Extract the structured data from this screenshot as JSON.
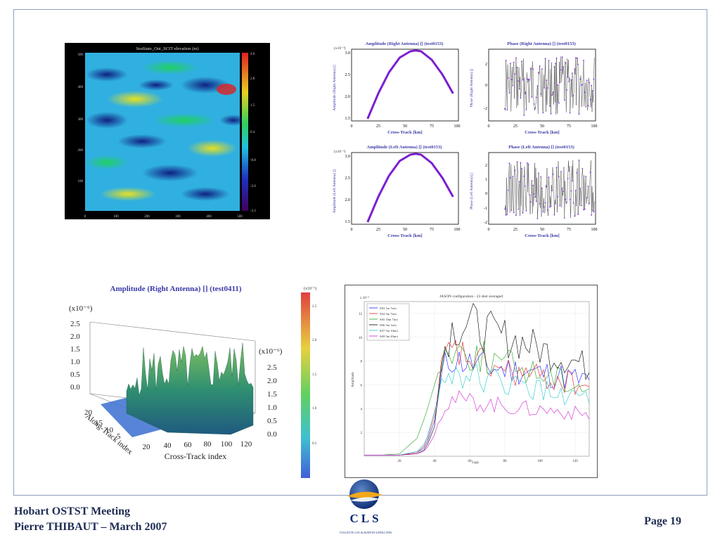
{
  "footer": {
    "line1": "Hobart OSTST Meeting",
    "line2": "Pierre THIBAUT – March 2007",
    "page": "Page 19"
  },
  "logo": {
    "name": "CLS",
    "tagline": "COLLECTE LOCALISATION SATELLITES"
  },
  "heatmap": {
    "title": "SeaState_Out_SCIT elevation (m)",
    "x_ticks": [
      "0",
      "100",
      "200",
      "300",
      "400",
      "500"
    ],
    "y_ticks": [
      "500",
      "400",
      "300",
      "200",
      "100"
    ],
    "colorbar_ticks": [
      "4.0",
      "2.8",
      "1.5",
      "0.4",
      "-0.8",
      "-2.0",
      "-2.2"
    ]
  },
  "amp_right": {
    "title": "Amplitude (Right Antenna) [] (test0153)",
    "ylabel": "Amplitude (Right Antenna) []",
    "xlabel": "Cross-Track [km]",
    "scale": "(x10⁻³)",
    "yticks": [
      "3.0",
      "2.5",
      "2.0",
      "1.5"
    ],
    "xticks": [
      "0",
      "25",
      "50",
      "75",
      "100"
    ]
  },
  "amp_left": {
    "title": "Amplitude (Left Antenna) [] (test0153)",
    "ylabel": "Amplitude (Left Antenna) []",
    "xlabel": "Cross-Track [km]",
    "scale": "(x10⁻³)",
    "yticks": [
      "3.0",
      "2.5",
      "2.0",
      "1.5"
    ],
    "xticks": [
      "0",
      "25",
      "50",
      "75",
      "100"
    ]
  },
  "phase_right": {
    "title": "Phase (Right Antenna) [] (test0153)",
    "ylabel": "Phase (Right Antenna) []",
    "xlabel": "Cross-Track [km]",
    "yticks": [
      "2",
      "0",
      "-2"
    ],
    "xticks": [
      "0",
      "25",
      "50",
      "75",
      "100"
    ]
  },
  "phase_left": {
    "title": "Phase (Left Antenna) [] (test0153)",
    "ylabel": "Phase (Left Antenna) []",
    "xlabel": "Cross-Track [km]",
    "yticks": [
      "2",
      "1",
      "0",
      "-1",
      "-2"
    ],
    "xticks": [
      "0",
      "25",
      "50",
      "75",
      "100"
    ]
  },
  "surface": {
    "title": "Amplitude (Right Antenna) [] (test0411)",
    "zscale": "(x10⁻⁶)",
    "zticks": [
      "2.5",
      "2.0",
      "1.5",
      "1.0",
      "0.5",
      "0.0"
    ],
    "zticks_right": [
      "2.5",
      "2.0",
      "1.5",
      "1.0",
      "0.5",
      "0.0"
    ],
    "xlabel": "Cross-Track index",
    "xticks": [
      "20",
      "40",
      "60",
      "80",
      "100",
      "120"
    ],
    "ylabel": "Along-Track index",
    "yticks": [
      "20",
      "15",
      "10",
      "5"
    ],
    "colorbar_scale": "(x10⁻⁶)",
    "colorbar_ticks": [
      "2.5",
      "2.0",
      "1.5",
      "1.0",
      "0.5"
    ]
  },
  "chart_data": [
    {
      "type": "line",
      "title": "Amplitude (Right Antenna) [] (test0153)",
      "xlabel": "Cross-Track [km]",
      "ylabel": "Amplitude (Right Antenna) []",
      "x": [
        15,
        25,
        35,
        45,
        55,
        60,
        65,
        75,
        85,
        95
      ],
      "series": [
        {
          "values": [
            1.45,
            2.05,
            2.55,
            2.9,
            3.05,
            3.07,
            3.05,
            2.85,
            2.5,
            2.05
          ]
        }
      ],
      "xlim": [
        0,
        100
      ],
      "ylim": [
        1.4,
        3.1
      ]
    },
    {
      "type": "line",
      "title": "Amplitude (Left Antenna) [] (test0153)",
      "xlabel": "Cross-Track [km]",
      "ylabel": "Amplitude (Left Antenna) []",
      "x": [
        15,
        25,
        35,
        45,
        55,
        60,
        65,
        75,
        85,
        95
      ],
      "series": [
        {
          "values": [
            1.45,
            2.05,
            2.55,
            2.9,
            3.05,
            3.07,
            3.05,
            2.85,
            2.5,
            2.05
          ]
        }
      ],
      "xlim": [
        0,
        100
      ],
      "ylim": [
        1.4,
        3.1
      ]
    },
    {
      "type": "line",
      "title": "JASON configuration - 23 shot averaged",
      "xlabel": "Lags",
      "ylabel": "Amplitude",
      "yscale_label": "x 10⁻⁶",
      "xticks": [
        "20",
        "40",
        "60",
        "80",
        "100",
        "120"
      ],
      "yticks": [
        "2",
        "4",
        "6",
        "8",
        "10",
        "12"
      ],
      "xlim": [
        0,
        128
      ],
      "ylim": [
        0,
        13
      ],
      "x": [
        0,
        10,
        20,
        30,
        35,
        40,
        45,
        50,
        60,
        70,
        80,
        90,
        100,
        110,
        120,
        128
      ],
      "series": [
        {
          "name": "SS3 1m 7m/s",
          "color": "#1a1aff",
          "values": [
            0.1,
            0.1,
            0.1,
            0.3,
            0.8,
            3.0,
            7.5,
            8.2,
            7.8,
            7.5,
            7.3,
            7.2,
            7.0,
            6.8,
            6.5,
            6.2
          ]
        },
        {
          "name": "SS4 5m 7m/s",
          "color": "#e02020",
          "values": [
            0.1,
            0.1,
            0.1,
            0.3,
            1.0,
            3.5,
            8.0,
            8.8,
            8.2,
            7.6,
            7.2,
            6.9,
            6.6,
            6.4,
            6.1,
            5.8
          ]
        },
        {
          "name": "SS5 10m 7m/s",
          "color": "#20a020",
          "values": [
            0.1,
            0.1,
            0.2,
            1.5,
            3.5,
            6.0,
            8.5,
            9.0,
            8.6,
            8.2,
            7.8,
            7.4,
            7.0,
            6.6,
            6.2,
            5.8
          ]
        },
        {
          "name": "SS6 5m 1m/s",
          "color": "#000000",
          "values": [
            0.1,
            0.1,
            0.1,
            0.2,
            0.6,
            2.5,
            9.0,
            10.8,
            11.2,
            10.5,
            10.0,
            9.6,
            9.0,
            8.5,
            8.0,
            7.4
          ]
        },
        {
          "name": "SS7 5m 10m/s",
          "color": "#20c8c8",
          "values": [
            0.1,
            0.1,
            0.1,
            0.4,
            1.2,
            3.8,
            6.5,
            7.0,
            6.8,
            6.4,
            6.1,
            5.8,
            5.5,
            5.2,
            5.0,
            4.8
          ]
        },
        {
          "name": "SS9 5m 20m/s",
          "color": "#d020d0",
          "values": [
            0.1,
            0.1,
            0.1,
            0.2,
            0.5,
            1.8,
            4.2,
            4.8,
            4.6,
            4.4,
            4.2,
            4.0,
            3.9,
            3.8,
            3.6,
            3.5
          ]
        }
      ]
    }
  ]
}
